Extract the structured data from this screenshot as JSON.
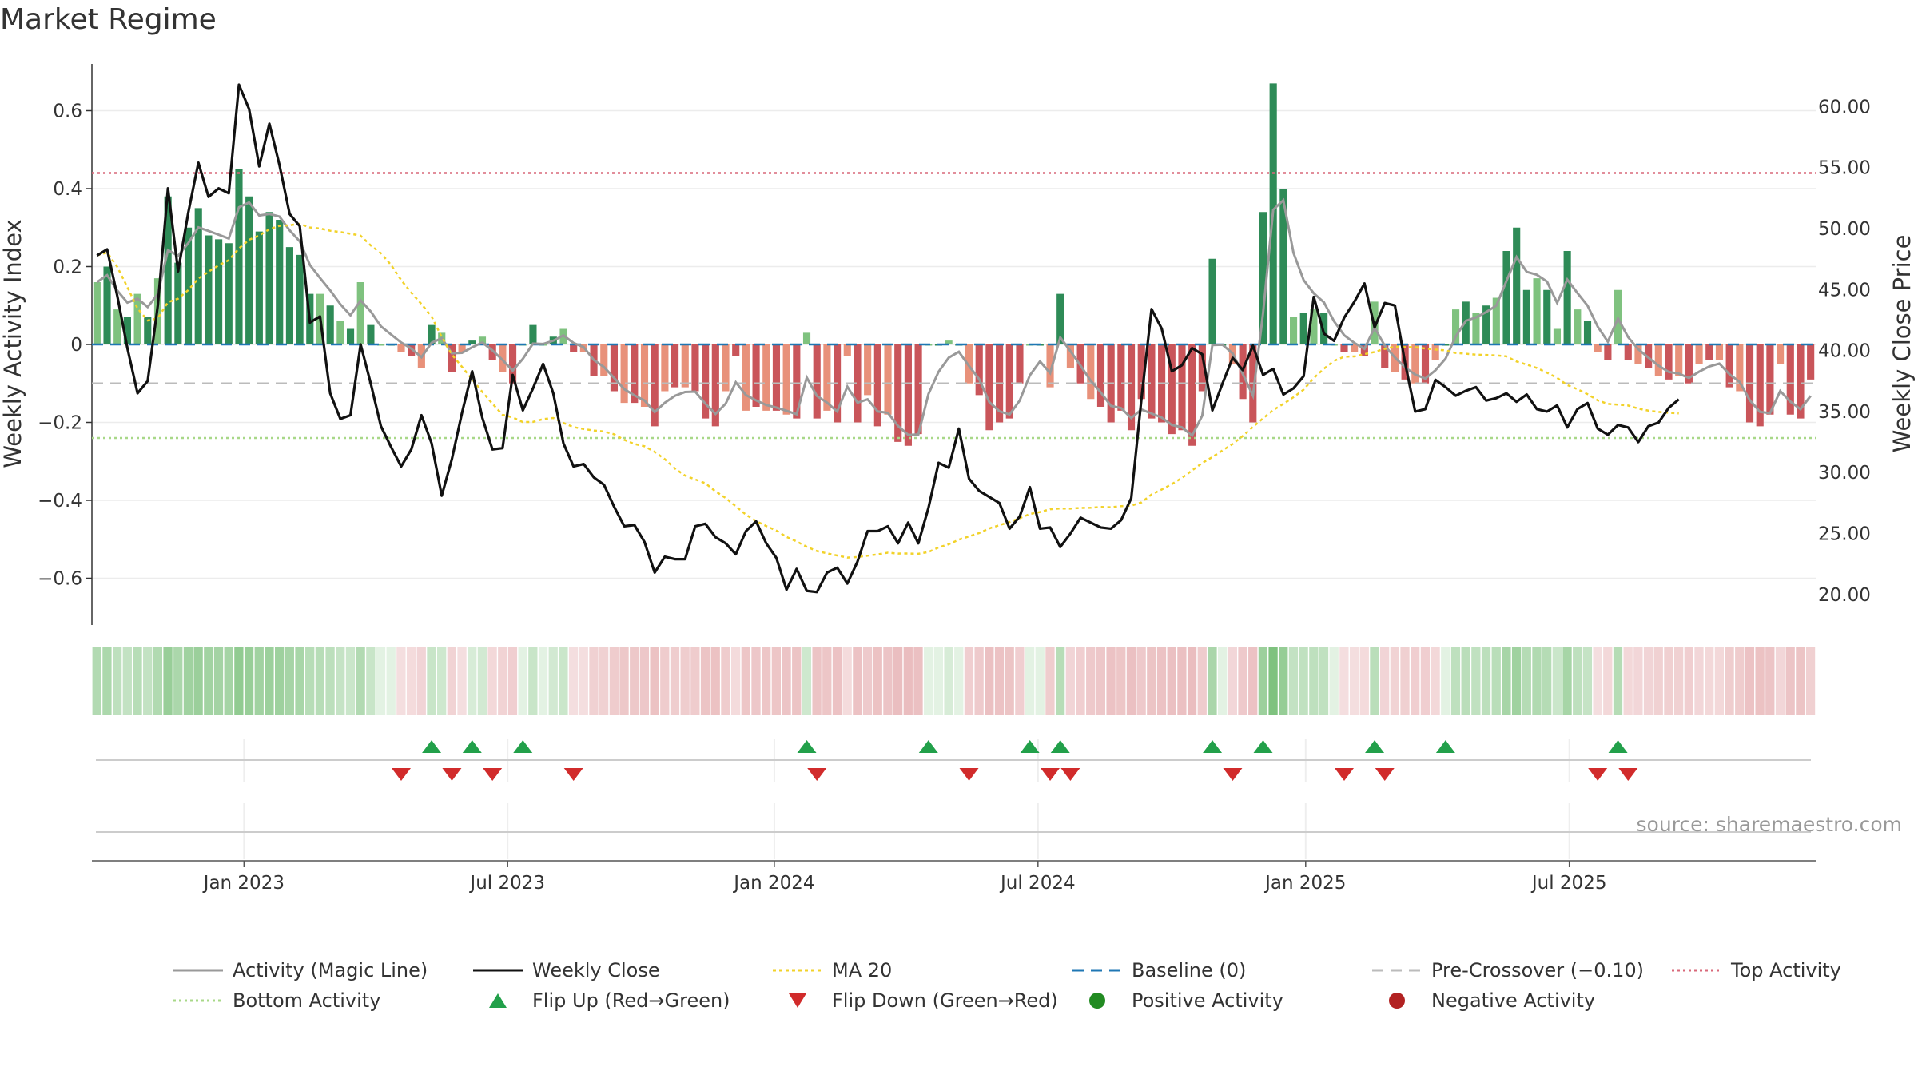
{
  "title": "Market Regime",
  "source": "source: sharemaestro.com",
  "chart_data": {
    "type": "bar",
    "y_left_label": "Weekly Activity Index",
    "y_right_label": "Weekly Close Price",
    "y_left_range": [
      -0.72,
      0.72
    ],
    "y_right_range": [
      17.5,
      63.5
    ],
    "y_left_ticks": [
      {
        "v": 0.6,
        "label": "0.6"
      },
      {
        "v": 0.4,
        "label": "0.4"
      },
      {
        "v": 0.2,
        "label": "0.2"
      },
      {
        "v": 0,
        "label": "0"
      },
      {
        "v": -0.2,
        "label": "−0.2"
      },
      {
        "v": -0.4,
        "label": "−0.4"
      },
      {
        "v": -0.6,
        "label": "−0.6"
      }
    ],
    "y_right_ticks": [
      {
        "v": 60,
        "label": "60.00"
      },
      {
        "v": 55,
        "label": "55.00"
      },
      {
        "v": 50,
        "label": "50.00"
      },
      {
        "v": 45,
        "label": "45.00"
      },
      {
        "v": 40,
        "label": "40.00"
      },
      {
        "v": 35,
        "label": "35.00"
      },
      {
        "v": 30,
        "label": "30.00"
      },
      {
        "v": 25,
        "label": "25.00"
      },
      {
        "v": 20,
        "label": "20.00"
      }
    ],
    "x_ticks": [
      {
        "i": 14.5,
        "label": "Jan 2023"
      },
      {
        "i": 40.5,
        "label": "Jul 2023"
      },
      {
        "i": 66.8,
        "label": "Jan 2024"
      },
      {
        "i": 92.8,
        "label": "Jul 2024"
      },
      {
        "i": 119.2,
        "label": "Jan 2025"
      },
      {
        "i": 145.2,
        "label": "Jul 2025"
      }
    ],
    "top_activity": 0.44,
    "bottom_activity": -0.24,
    "pre_crossover": -0.1,
    "baseline": 0,
    "activity": [
      0.16,
      0.2,
      0.09,
      0.07,
      0.13,
      0.07,
      0.17,
      0.38,
      0.21,
      0.3,
      0.35,
      0.28,
      0.27,
      0.26,
      0.45,
      0.38,
      0.29,
      0.34,
      0.32,
      0.25,
      0.23,
      0.13,
      0.13,
      0.1,
      0.06,
      0.04,
      0.16,
      0.05,
      0.0,
      0.0,
      -0.02,
      -0.03,
      -0.06,
      0.05,
      0.03,
      -0.07,
      -0.02,
      0.01,
      0.02,
      -0.04,
      -0.07,
      -0.1,
      0.0,
      0.05,
      0.0,
      0.02,
      0.04,
      -0.02,
      -0.02,
      -0.08,
      -0.08,
      -0.12,
      -0.15,
      -0.15,
      -0.16,
      -0.21,
      -0.12,
      -0.11,
      -0.11,
      -0.12,
      -0.19,
      -0.21,
      -0.12,
      -0.03,
      -0.17,
      -0.16,
      -0.17,
      -0.17,
      -0.18,
      -0.19,
      0.03,
      -0.19,
      -0.17,
      -0.2,
      -0.03,
      -0.2,
      -0.13,
      -0.21,
      -0.18,
      -0.25,
      -0.26,
      -0.23,
      0.0,
      0.0,
      0.01,
      0.0,
      -0.1,
      -0.13,
      -0.22,
      -0.2,
      -0.19,
      -0.1,
      0.0,
      0.0,
      -0.11,
      0.13,
      -0.06,
      -0.1,
      -0.14,
      -0.16,
      -0.2,
      -0.17,
      -0.22,
      -0.14,
      -0.19,
      -0.2,
      -0.23,
      -0.22,
      -0.26,
      -0.12,
      0.22,
      0.0,
      -0.05,
      -0.14,
      -0.2,
      0.34,
      0.67,
      0.4,
      0.07,
      0.08,
      0.09,
      0.08,
      0.0,
      -0.02,
      -0.02,
      -0.03,
      0.11,
      -0.06,
      -0.07,
      -0.09,
      -0.1,
      -0.1,
      -0.04,
      0.0,
      0.09,
      0.11,
      0.08,
      0.1,
      0.12,
      0.24,
      0.3,
      0.14,
      0.17,
      0.14,
      0.04,
      0.24,
      0.09,
      0.06,
      -0.02,
      -0.04,
      0.14,
      -0.04,
      -0.05,
      -0.06,
      -0.08,
      -0.09,
      -0.08,
      -0.1,
      -0.05,
      -0.04,
      -0.04,
      -0.11,
      -0.12,
      -0.2,
      -0.21,
      -0.18,
      -0.05,
      -0.18,
      -0.19,
      -0.09
    ],
    "close": [
      47.8,
      48.3,
      44.5,
      40.2,
      36.5,
      37.5,
      43.7,
      53.3,
      46.5,
      51.3,
      55.4,
      52.6,
      53.3,
      52.9,
      61.8,
      59.8,
      55.1,
      58.6,
      55.2,
      51.2,
      50.2,
      42.3,
      42.8,
      36.5,
      34.4,
      34.7,
      40.5,
      37.3,
      33.8,
      32.1,
      30.5,
      31.9,
      34.7,
      32.4,
      28.1,
      31.1,
      34.9,
      38.3,
      34.5,
      31.9,
      32.0,
      38.0,
      35.1,
      36.9,
      38.9,
      36.5,
      32.4,
      30.5,
      30.7,
      29.6,
      29.0,
      27.2,
      25.6,
      25.7,
      24.3,
      21.8,
      23.1,
      22.9,
      22.9,
      25.6,
      25.8,
      24.7,
      24.2,
      23.3,
      25.2,
      26.0,
      24.2,
      23.0,
      20.4,
      22.1,
      20.3,
      20.2,
      21.8,
      22.2,
      20.9,
      22.7,
      25.2,
      25.2,
      25.6,
      24.2,
      25.9,
      24.2,
      27.1,
      30.8,
      30.4,
      33.6,
      29.5,
      28.5,
      28.0,
      27.5,
      25.4,
      26.4,
      28.8,
      25.4,
      25.5,
      23.9,
      25.0,
      26.3,
      25.9,
      25.5,
      25.4,
      26.1,
      27.9,
      36.0,
      43.4,
      41.8,
      38.3,
      38.8,
      40.2,
      39.7,
      35.1,
      37.3,
      39.4,
      38.4,
      40.4,
      38.0,
      38.5,
      36.4,
      36.9,
      37.9,
      44.4,
      41.4,
      40.8,
      42.7,
      44.0,
      45.5,
      41.9,
      43.9,
      43.7,
      39.0,
      35.0,
      35.2,
      37.6,
      37.0,
      36.3,
      36.7,
      37.0,
      35.9,
      36.1,
      36.5,
      35.8,
      36.4,
      35.2,
      35.0,
      35.5,
      33.7,
      35.2,
      35.7,
      33.6,
      33.1,
      33.9,
      33.7,
      32.5,
      33.8,
      34.1,
      35.3,
      36.0
    ]
  },
  "legend": [
    {
      "key": "activity_line",
      "label": "Activity (Magic Line)"
    },
    {
      "key": "weekly_close",
      "label": "Weekly Close"
    },
    {
      "key": "ma20",
      "label": "MA 20"
    },
    {
      "key": "baseline",
      "label": "Baseline (0)"
    },
    {
      "key": "pre_crossover",
      "label": "Pre-Crossover (−0.10)"
    },
    {
      "key": "top_activity",
      "label": "Top Activity"
    },
    {
      "key": "bottom_activity",
      "label": "Bottom Activity"
    },
    {
      "key": "flip_up",
      "label": "Flip Up (Red→Green)"
    },
    {
      "key": "flip_down",
      "label": "Flip Down (Green→Red)"
    },
    {
      "key": "positive_activity",
      "label": "Positive Activity"
    },
    {
      "key": "negative_activity",
      "label": "Negative Activity"
    }
  ],
  "colors": {
    "pos_strong": "#2e8b57",
    "pos_light": "#7fc27f",
    "neg_strong": "#c9555a",
    "neg_light": "#e8917a",
    "magic_line": "#999999",
    "close_line": "#111111",
    "ma20": "#f2d229",
    "baseline": "#1f77b4",
    "pre_crossover": "#bbbbbb",
    "top_activity": "#d9687a",
    "bottom_activity": "#a8d888",
    "flip_up": "#22a04a",
    "flip_down": "#d12b2b",
    "positive_dot": "#228b22",
    "negative_dot": "#b22222"
  }
}
